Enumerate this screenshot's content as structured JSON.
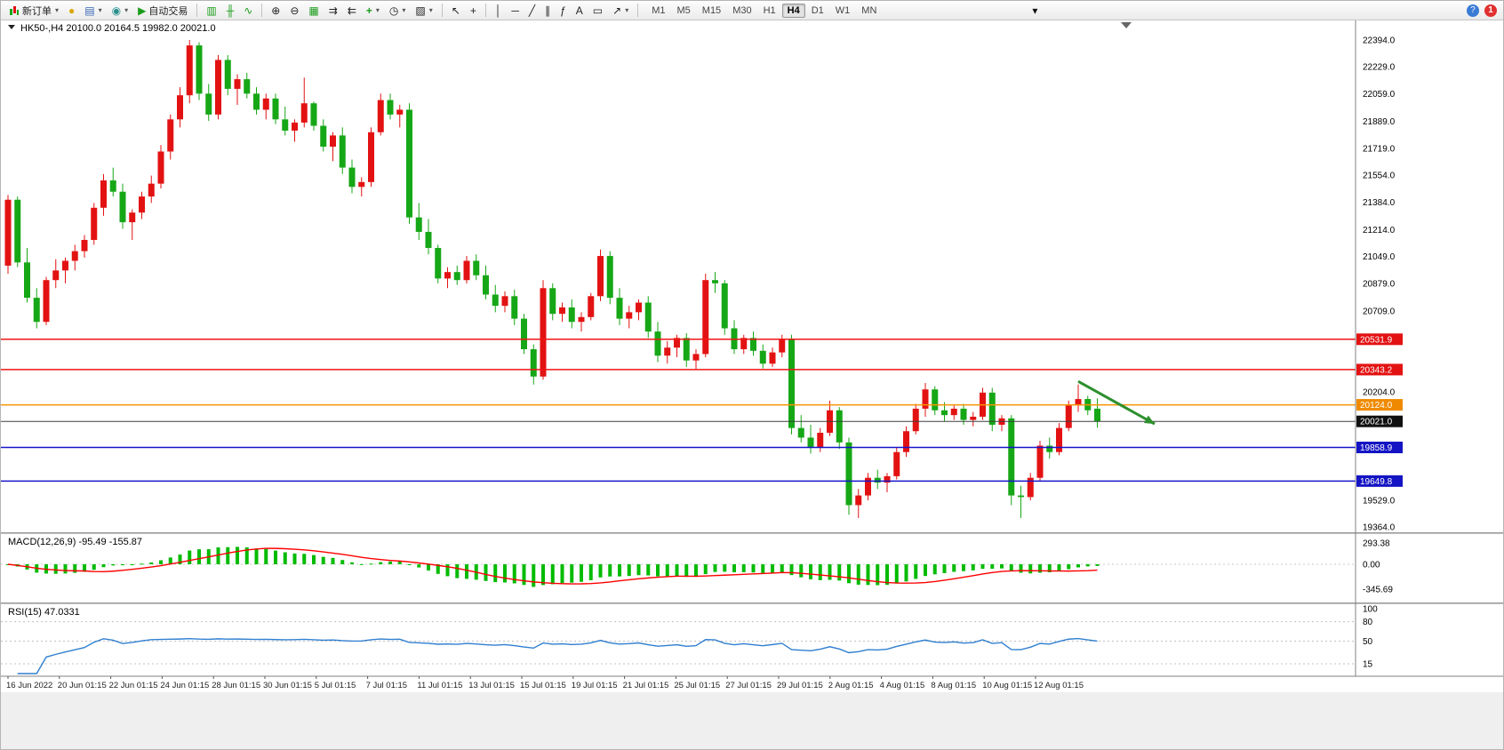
{
  "toolbar": {
    "new_order_label": "新订单",
    "auto_trading_label": "自动交易",
    "timeframes": [
      "M1",
      "M5",
      "M15",
      "M30",
      "H1",
      "H4",
      "D1",
      "W1",
      "MN"
    ],
    "active_timeframe": "H4",
    "notification_count": "1"
  },
  "chart_data": {
    "type": "candlestick",
    "symbol": "HK50-",
    "timeframe": "H4",
    "info_ohlc": {
      "open": "20100.0",
      "high": "20164.5",
      "low": "19982.0",
      "close": "20021.0"
    },
    "price_axis": {
      "top_price": 22521,
      "bottom_price": 19331,
      "ticks": [
        22394,
        22229,
        22059,
        21889,
        21719,
        21554,
        21384,
        21214,
        21049,
        20879,
        20709,
        20204,
        19529,
        19364
      ]
    },
    "price_lines": [
      {
        "price": 20531.9,
        "label": "20531.9",
        "color": "#f01515",
        "tag_bg": "#e31212",
        "tag_fg": "#ffffff",
        "is_current": false
      },
      {
        "price": 20343.2,
        "label": "20343.2",
        "color": "#f01515",
        "tag_bg": "#e31212",
        "tag_fg": "#ffffff",
        "is_current": false
      },
      {
        "price": 20124.0,
        "label": "20124.0",
        "color": "#f79400",
        "tag_bg": "#ef8a00",
        "tag_fg": "#ffffff",
        "is_current": false
      },
      {
        "price": 20021.0,
        "label": "20021.0",
        "color": "#3d3d3d",
        "tag_bg": "#101010",
        "tag_fg": "#ffffff",
        "is_current": true
      },
      {
        "price": 19858.9,
        "label": "19858.9",
        "color": "#1515cc",
        "tag_bg": "#1414c4",
        "tag_fg": "#ffffff",
        "is_current": false
      },
      {
        "price": 19649.8,
        "label": "19649.8",
        "color": "#1515cc",
        "tag_bg": "#1414c4",
        "tag_fg": "#ffffff",
        "is_current": false
      }
    ],
    "candles": [
      [
        20990,
        21430,
        20940,
        21400
      ],
      [
        21400,
        21420,
        20980,
        21010
      ],
      [
        21010,
        21100,
        20760,
        20790
      ],
      [
        20790,
        20850,
        20600,
        20640
      ],
      [
        20640,
        20920,
        20620,
        20900
      ],
      [
        20900,
        21030,
        20850,
        20960
      ],
      [
        20960,
        21040,
        20880,
        21020
      ],
      [
        21020,
        21120,
        20960,
        21080
      ],
      [
        21080,
        21180,
        21040,
        21150
      ],
      [
        21150,
        21380,
        21120,
        21350
      ],
      [
        21350,
        21560,
        21300,
        21520
      ],
      [
        21520,
        21600,
        21420,
        21450
      ],
      [
        21450,
        21500,
        21220,
        21260
      ],
      [
        21260,
        21340,
        21150,
        21320
      ],
      [
        21320,
        21450,
        21280,
        21420
      ],
      [
        21420,
        21550,
        21380,
        21500
      ],
      [
        21500,
        21740,
        21470,
        21700
      ],
      [
        21700,
        21930,
        21650,
        21900
      ],
      [
        21900,
        22100,
        21850,
        22050
      ],
      [
        22050,
        22394,
        22000,
        22360
      ],
      [
        22360,
        22380,
        22020,
        22060
      ],
      [
        22060,
        22120,
        21890,
        21930
      ],
      [
        21930,
        22300,
        21900,
        22270
      ],
      [
        22270,
        22300,
        22050,
        22090
      ],
      [
        22090,
        22180,
        21990,
        22150
      ],
      [
        22150,
        22190,
        22030,
        22060
      ],
      [
        22060,
        22100,
        21930,
        21960
      ],
      [
        21960,
        22060,
        21900,
        22030
      ],
      [
        22030,
        22060,
        21870,
        21900
      ],
      [
        21900,
        21980,
        21800,
        21830
      ],
      [
        21830,
        21900,
        21760,
        21880
      ],
      [
        21880,
        22160,
        21850,
        22000
      ],
      [
        22000,
        22010,
        21830,
        21860
      ],
      [
        21860,
        21900,
        21700,
        21730
      ],
      [
        21730,
        21820,
        21640,
        21800
      ],
      [
        21800,
        21850,
        21560,
        21600
      ],
      [
        21600,
        21650,
        21440,
        21480
      ],
      [
        21480,
        21540,
        21420,
        21510
      ],
      [
        21510,
        21850,
        21480,
        21820
      ],
      [
        21820,
        22060,
        21800,
        22020
      ],
      [
        22020,
        22060,
        21900,
        21930
      ],
      [
        21930,
        21990,
        21850,
        21960
      ],
      [
        21960,
        22000,
        21250,
        21290
      ],
      [
        21290,
        21380,
        21150,
        21200
      ],
      [
        21200,
        21280,
        21060,
        21100
      ],
      [
        21100,
        21120,
        20880,
        20910
      ],
      [
        20910,
        20980,
        20850,
        20950
      ],
      [
        20950,
        20990,
        20870,
        20900
      ],
      [
        20900,
        21050,
        20880,
        21020
      ],
      [
        21020,
        21060,
        20900,
        20930
      ],
      [
        20930,
        20990,
        20780,
        20810
      ],
      [
        20810,
        20870,
        20700,
        20740
      ],
      [
        20740,
        20830,
        20700,
        20800
      ],
      [
        20800,
        20840,
        20620,
        20660
      ],
      [
        20660,
        20690,
        20440,
        20470
      ],
      [
        20470,
        20500,
        20250,
        20300
      ],
      [
        20300,
        20900,
        20280,
        20850
      ],
      [
        20850,
        20880,
        20650,
        20690
      ],
      [
        20690,
        20760,
        20640,
        20730
      ],
      [
        20730,
        20780,
        20600,
        20640
      ],
      [
        20640,
        20700,
        20580,
        20670
      ],
      [
        20670,
        20820,
        20650,
        20800
      ],
      [
        20800,
        21090,
        20770,
        21050
      ],
      [
        21050,
        21080,
        20750,
        20790
      ],
      [
        20790,
        20850,
        20620,
        20660
      ],
      [
        20660,
        20740,
        20600,
        20700
      ],
      [
        20700,
        20780,
        20650,
        20760
      ],
      [
        20760,
        20800,
        20540,
        20580
      ],
      [
        20580,
        20640,
        20390,
        20430
      ],
      [
        20430,
        20520,
        20380,
        20480
      ],
      [
        20480,
        20560,
        20420,
        20540
      ],
      [
        20540,
        20570,
        20360,
        20400
      ],
      [
        20400,
        20470,
        20340,
        20440
      ],
      [
        20440,
        20940,
        20420,
        20900
      ],
      [
        20900,
        20950,
        20820,
        20880
      ],
      [
        20880,
        20900,
        20560,
        20600
      ],
      [
        20600,
        20650,
        20440,
        20470
      ],
      [
        20470,
        20560,
        20440,
        20540
      ],
      [
        20540,
        20580,
        20430,
        20460
      ],
      [
        20460,
        20500,
        20350,
        20380
      ],
      [
        20380,
        20480,
        20360,
        20450
      ],
      [
        20450,
        20560,
        20420,
        20530
      ],
      [
        20530,
        20560,
        19940,
        19980
      ],
      [
        19980,
        20060,
        19890,
        19920
      ],
      [
        19920,
        20000,
        19820,
        19860
      ],
      [
        19860,
        19980,
        19830,
        19950
      ],
      [
        19950,
        20150,
        19930,
        20090
      ],
      [
        20090,
        20110,
        19850,
        19890
      ],
      [
        19890,
        19920,
        19440,
        19500
      ],
      [
        19500,
        19600,
        19420,
        19560
      ],
      [
        19560,
        19700,
        19530,
        19670
      ],
      [
        19670,
        19720,
        19600,
        19640
      ],
      [
        19640,
        19700,
        19580,
        19680
      ],
      [
        19680,
        19860,
        19660,
        19830
      ],
      [
        19830,
        19990,
        19800,
        19960
      ],
      [
        19960,
        20130,
        19940,
        20100
      ],
      [
        20100,
        20260,
        20050,
        20220
      ],
      [
        20220,
        20240,
        20060,
        20090
      ],
      [
        20090,
        20140,
        20020,
        20060
      ],
      [
        20060,
        20120,
        20030,
        20100
      ],
      [
        20100,
        20130,
        20000,
        20030
      ],
      [
        20030,
        20080,
        19990,
        20050
      ],
      [
        20050,
        20230,
        20030,
        20200
      ],
      [
        20200,
        20230,
        19960,
        20000
      ],
      [
        20000,
        20060,
        19960,
        20040
      ],
      [
        20040,
        20060,
        19500,
        19560
      ],
      [
        19560,
        19620,
        19420,
        19550
      ],
      [
        19550,
        19700,
        19530,
        19670
      ],
      [
        19670,
        19900,
        19650,
        19870
      ],
      [
        19870,
        19920,
        19790,
        19830
      ],
      [
        19830,
        20010,
        19810,
        19980
      ],
      [
        19980,
        20150,
        19960,
        20120
      ],
      [
        20120,
        20250,
        20080,
        20160
      ],
      [
        20160,
        20180,
        20060,
        20090
      ],
      [
        20100,
        20164.5,
        19982,
        20021
      ]
    ],
    "time_labels": [
      "16 Jun 2022",
      "20 Jun 01:15",
      "22 Jun 01:15",
      "24 Jun 01:15",
      "28 Jun 01:15",
      "30 Jun 01:15",
      "5 Jul 01:15",
      "7 Jul 01:15",
      "11 Jul 01:15",
      "13 Jul 01:15",
      "15 Jul 01:15",
      "19 Jul 01:15",
      "21 Jul 01:15",
      "25 Jul 01:15",
      "27 Jul 01:15",
      "29 Jul 01:15",
      "2 Aug 01:15",
      "4 Aug 01:15",
      "8 Aug 01:15",
      "10 Aug 01:15",
      "12 Aug 01:15"
    ],
    "annotation_arrow": {
      "from_index": 112,
      "from_price": 20270,
      "to_index": 120,
      "to_price": 20005,
      "color": "#2d8f2d"
    },
    "macd": {
      "title": "MACD(12,26,9)",
      "value_main": "-95.49",
      "value_signal": "-155.87",
      "axis_ticks": [
        293.38,
        0.0,
        -345.69
      ],
      "fast": 12,
      "slow": 26,
      "signal": 9
    },
    "rsi": {
      "title": "RSI(15)",
      "value": "47.0331",
      "period": 15,
      "axis_ticks": [
        100,
        80,
        50,
        15
      ],
      "levels": [
        80,
        50,
        15
      ]
    },
    "colors": {
      "up": "#e31212",
      "down": "#16a716",
      "macd_hist": "#00bb00",
      "macd_signal": "#ff0000",
      "rsi_line": "#2f7fd0"
    }
  }
}
